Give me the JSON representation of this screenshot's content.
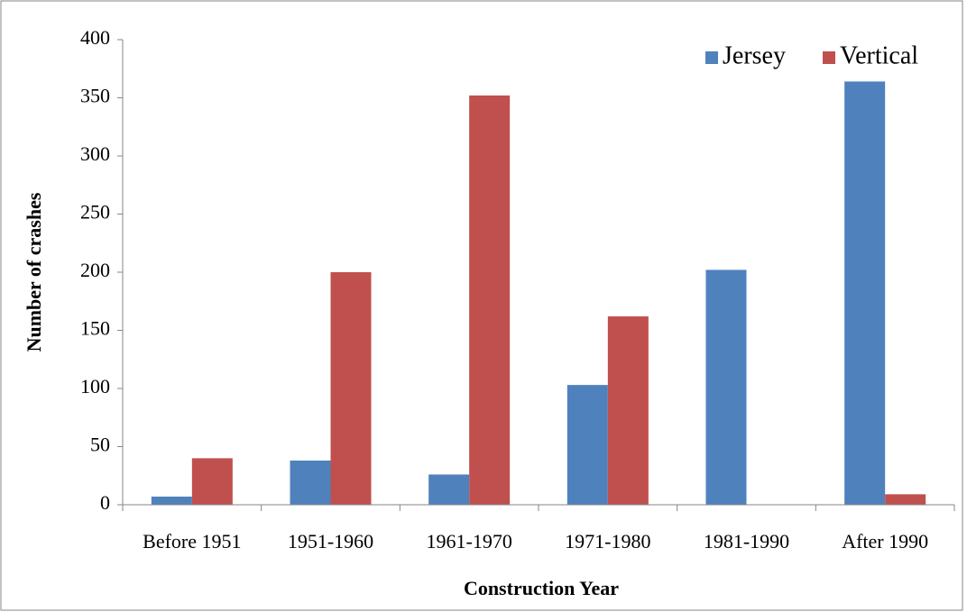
{
  "chart_data": {
    "type": "bar",
    "xlabel": "Construction Year",
    "ylabel": "Number of crashes",
    "categories": [
      "Before 1951",
      "1951-1960",
      "1961-1970",
      "1971-1980",
      "1981-1990",
      "After 1990"
    ],
    "series": [
      {
        "name": "Jersey",
        "color": "#4f81bd",
        "values": [
          7,
          38,
          26,
          103,
          202,
          364
        ]
      },
      {
        "name": "Vertical",
        "color": "#c0504d",
        "values": [
          40,
          200,
          352,
          162,
          0,
          9
        ]
      }
    ],
    "ylim": [
      0,
      400
    ],
    "yticks": [
      0,
      50,
      100,
      150,
      200,
      250,
      300,
      350,
      400
    ],
    "grid": false,
    "legend": "top-right"
  }
}
